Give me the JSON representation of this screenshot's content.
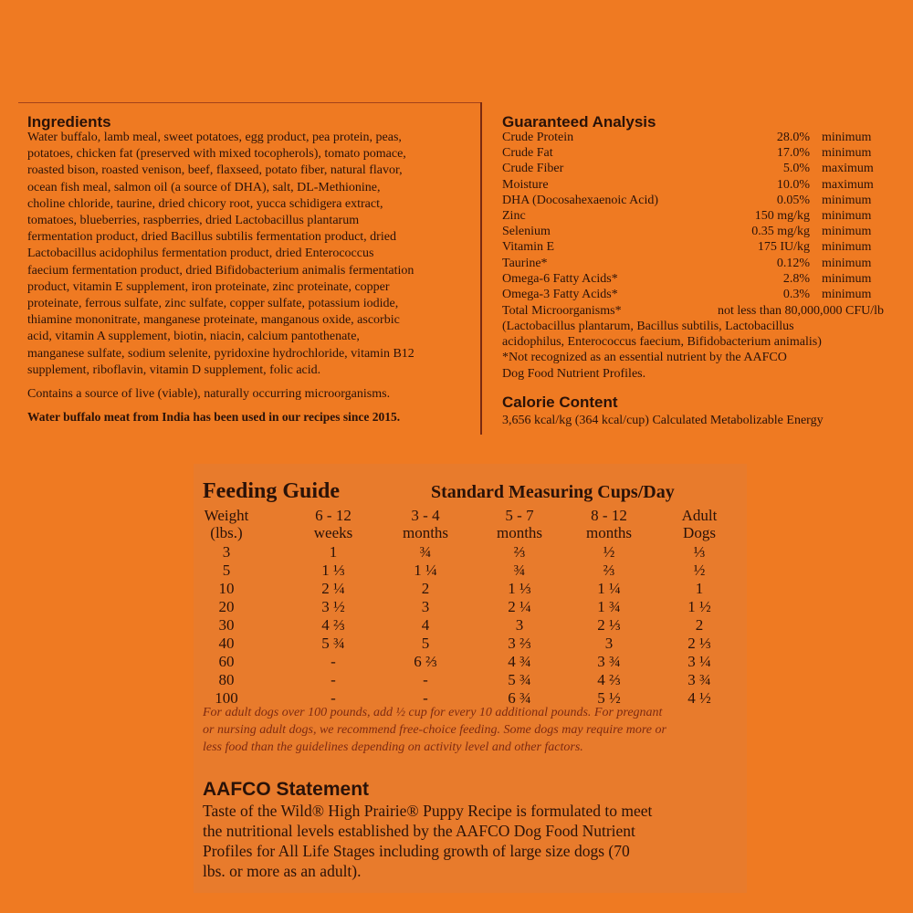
{
  "ingredients": {
    "title": "Ingredients",
    "lines": [
      "Water buffalo, lamb meal, sweet potatoes, egg product, pea protein, peas,",
      "potatoes, chicken fat (preserved with mixed tocopherols), tomato pomace,",
      "roasted bison, roasted venison, beef, flaxseed, potato fiber, natural flavor,",
      "ocean fish meal, salmon oil (a source of DHA), salt, DL-Methionine,",
      "choline chloride, taurine, dried chicory root, yucca schidigera extract,",
      "tomatoes, blueberries, raspberries, dried Lactobacillus plantarum",
      "fermentation product, dried Bacillus subtilis fermentation product, dried",
      "Lactobacillus acidophilus fermentation product, dried Enterococcus",
      "faecium fermentation product, dried Bifidobacterium animalis fermentation",
      "product, vitamin E supplement, iron proteinate, zinc proteinate, copper",
      "proteinate, ferrous sulfate, zinc sulfate, copper sulfate, potassium iodide,",
      "thiamine mononitrate, manganese proteinate, manganous oxide, ascorbic",
      "acid, vitamin A supplement, biotin, niacin, calcium pantothenate,",
      "manganese sulfate, sodium selenite, pyridoxine hydrochloride, vitamin B12",
      "supplement, riboflavin, vitamin D supplement, folic acid."
    ],
    "note": "Contains a source of live (viable), naturally occurring microorganisms.",
    "statement": "Water buffalo meat from India has been used in our recipes since 2015."
  },
  "analysis": {
    "title": "Guaranteed Analysis",
    "rows": [
      {
        "name": "Crude Protein",
        "value": "28.0%",
        "basis": "minimum"
      },
      {
        "name": "Crude Fat",
        "value": "17.0%",
        "basis": "minimum"
      },
      {
        "name": "Crude Fiber",
        "value": "5.0%",
        "basis": "maximum"
      },
      {
        "name": "Moisture",
        "value": "10.0%",
        "basis": "maximum"
      },
      {
        "name": "DHA (Docosahexaenoic Acid)",
        "value": "0.05%",
        "basis": "minimum"
      },
      {
        "name": "Zinc",
        "value": "150 mg/kg",
        "basis": "minimum"
      },
      {
        "name": "Selenium",
        "value": "0.35 mg/kg",
        "basis": "minimum"
      },
      {
        "name": "Vitamin E",
        "value": "175 IU/kg",
        "basis": "minimum"
      },
      {
        "name": "Taurine*",
        "value": "0.12%",
        "basis": "minimum"
      },
      {
        "name": "Omega-6 Fatty Acids*",
        "value": "2.8%",
        "basis": "minimum"
      },
      {
        "name": "Omega-3 Fatty Acids*",
        "value": "0.3%",
        "basis": "minimum"
      }
    ],
    "microorganisms": {
      "name": "Total Microorganisms*",
      "value": "not less than 80,000,000 CFU/lb"
    },
    "lines": [
      "(Lactobacillus plantarum, Bacillus subtilis, Lactobacillus",
      "acidophilus, Enterococcus faecium, Bifidobacterium animalis)",
      "*Not recognized as an essential nutrient by the AAFCO",
      "Dog Food Nutrient Profiles."
    ]
  },
  "calorie": {
    "title": "Calorie Content",
    "text": "3,656 kcal/kg (364 kcal/cup) Calculated Metabolizable Energy"
  },
  "feeding": {
    "title": "Feeding Guide",
    "subtitle": "Standard Measuring Cups/Day",
    "headers": [
      [
        "Weight",
        "(lbs.)"
      ],
      [
        "6 - 12",
        "weeks"
      ],
      [
        "3 - 4",
        "months"
      ],
      [
        "5 - 7",
        "months"
      ],
      [
        "8 - 12",
        "months"
      ],
      [
        "Adult",
        "Dogs"
      ]
    ],
    "rows": [
      [
        "3",
        "1",
        "¾",
        "⅔",
        "½",
        "⅓"
      ],
      [
        "5",
        "1 ⅓",
        "1 ¼",
        "¾",
        "⅔",
        "½"
      ],
      [
        "10",
        "2 ¼",
        "2",
        "1 ⅓",
        "1 ¼",
        "1"
      ],
      [
        "20",
        "3 ½",
        "3",
        "2 ¼",
        "1 ¾",
        "1 ½"
      ],
      [
        "30",
        "4 ⅔",
        "4",
        "3",
        "2 ⅓",
        "2"
      ],
      [
        "40",
        "5 ¾",
        "5",
        "3 ⅔",
        "3",
        "2 ⅓"
      ],
      [
        "60",
        "-",
        "6 ⅔",
        "4 ¾",
        "3 ¾",
        "3 ¼"
      ],
      [
        "80",
        "-",
        "-",
        "5 ¾",
        "4 ⅔",
        "3 ¾"
      ],
      [
        "100",
        "-",
        "-",
        "6 ¾",
        "5 ½",
        "4 ½"
      ]
    ],
    "note_lines": [
      "For adult dogs over 100 pounds, add ½ cup for every 10 additional pounds. For pregnant",
      "or nursing adult dogs, we recommend free-choice feeding. Some dogs may require more or",
      "less food than the guidelines depending on activity level and other factors."
    ]
  },
  "aafco": {
    "title": "AAFCO Statement",
    "lines": [
      "Taste of the Wild® High Prairie® Puppy Recipe is formulated to meet",
      "the nutritional levels established by the AAFCO Dog Food Nutrient",
      "Profiles for All Life Stages including growth of large size dogs (70",
      "lbs. or more as an adult)."
    ]
  }
}
